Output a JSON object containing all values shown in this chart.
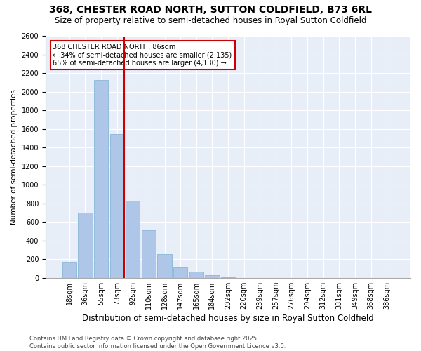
{
  "title": "368, CHESTER ROAD NORTH, SUTTON COLDFIELD, B73 6RL",
  "subtitle": "Size of property relative to semi-detached houses in Royal Sutton Coldfield",
  "xlabel": "Distribution of semi-detached houses by size in Royal Sutton Coldfield",
  "ylabel": "Number of semi-detached properties",
  "categories": [
    "18sqm",
    "36sqm",
    "55sqm",
    "73sqm",
    "92sqm",
    "110sqm",
    "128sqm",
    "147sqm",
    "165sqm",
    "184sqm",
    "202sqm",
    "220sqm",
    "239sqm",
    "257sqm",
    "276sqm",
    "294sqm",
    "312sqm",
    "331sqm",
    "349sqm",
    "368sqm",
    "386sqm"
  ],
  "values": [
    175,
    700,
    2130,
    1550,
    825,
    510,
    255,
    110,
    65,
    30,
    5,
    0,
    0,
    0,
    0,
    0,
    0,
    0,
    0,
    0,
    0
  ],
  "bar_color": "#aec6e8",
  "bar_edge_color": "#7bafd4",
  "vline_color": "#cc0000",
  "annotation_text": "368 CHESTER ROAD NORTH: 86sqm\n← 34% of semi-detached houses are smaller (2,135)\n65% of semi-detached houses are larger (4,130) →",
  "annotation_box_color": "#cc0000",
  "ylim": [
    0,
    2600
  ],
  "yticks": [
    0,
    200,
    400,
    600,
    800,
    1000,
    1200,
    1400,
    1600,
    1800,
    2000,
    2200,
    2400,
    2600
  ],
  "background_color": "#e8eef8",
  "footer_text": "Contains HM Land Registry data © Crown copyright and database right 2025.\nContains public sector information licensed under the Open Government Licence v3.0.",
  "title_fontsize": 10,
  "subtitle_fontsize": 8.5,
  "xlabel_fontsize": 8.5,
  "ylabel_fontsize": 7.5,
  "tick_fontsize": 7,
  "footer_fontsize": 6,
  "annotation_fontsize": 7
}
